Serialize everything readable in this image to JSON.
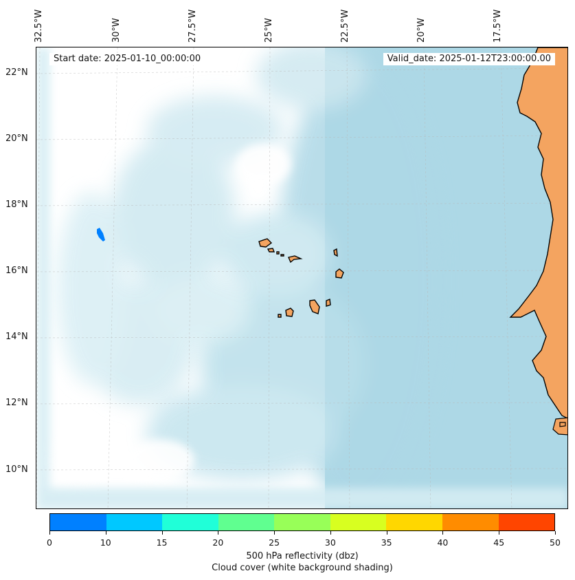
{
  "map": {
    "longitude_labels": [
      "32.5°W",
      "30°W",
      "27.5°W",
      "25°W",
      "22.5°W",
      "20°W",
      "17.5°W"
    ],
    "latitude_labels": [
      "22°N",
      "20°N",
      "18°N",
      "16°N",
      "14°N",
      "12°N",
      "10°N"
    ],
    "start_date": "Start date: 2025-01-10_00:00:00",
    "valid_date": "Valid_date: 2025-01-12T23:00:00.00",
    "land_color": "#f4a460",
    "ocean_cloud_color": "#add8e6",
    "reflectivity_patch_color": "#0080ff"
  },
  "colorbar": {
    "ticks": [
      "0",
      "10",
      "15",
      "20",
      "25",
      "30",
      "35",
      "40",
      "45",
      "50"
    ],
    "colors": [
      "#0080ff",
      "#00c8ff",
      "#20ffd8",
      "#60ff90",
      "#98ff58",
      "#d8ff20",
      "#ffd700",
      "#ff8c00",
      "#ff4500"
    ],
    "label_line1": "500 hPa reflectivity (dbz)",
    "label_line2": "Cloud cover (white background shading)"
  }
}
